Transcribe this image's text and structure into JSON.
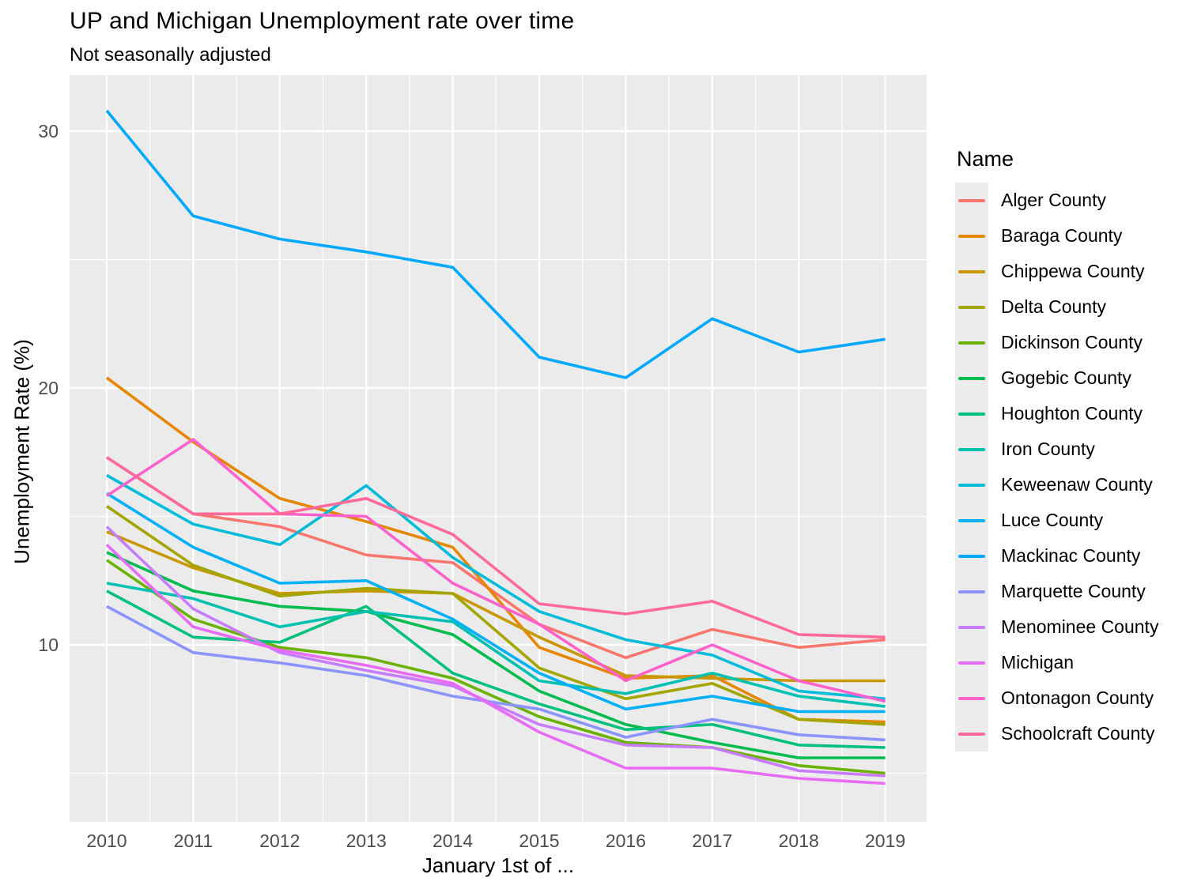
{
  "chart": {
    "title": "UP and Michigan Unemployment rate over time",
    "subtitle": "Not seasonally adjusted",
    "xlabel": "January 1st of ...",
    "ylabel": "Unemployment Rate (%)",
    "legend_title": "Name"
  },
  "chart_data": {
    "type": "line",
    "title": "UP and Michigan Unemployment rate over time",
    "subtitle": "Not seasonally adjusted",
    "xlabel": "January 1st of ...",
    "ylabel": "Unemployment Rate (%)",
    "x": [
      2010,
      2011,
      2012,
      2013,
      2014,
      2015,
      2016,
      2017,
      2018,
      2019
    ],
    "x_ticks": [
      "2010",
      "2011",
      "2012",
      "2013",
      "2014",
      "2015",
      "2016",
      "2017",
      "2018",
      "2019"
    ],
    "y_ticks": [
      10,
      20,
      30
    ],
    "y_minor_ticks": [
      5,
      15,
      25
    ],
    "ylim": [
      3.1,
      32.2
    ],
    "grid": true,
    "panel_background": "#ebebeb",
    "gridline_color": "#ffffff",
    "tick_label_color": "#4d4d4d",
    "legend_position": "right",
    "legend_title": "Name",
    "series": [
      {
        "name": "Alger County",
        "color": "#F8766D",
        "values": [
          17.3,
          15.1,
          14.6,
          13.5,
          13.2,
          10.8,
          9.5,
          10.6,
          9.9,
          10.2
        ]
      },
      {
        "name": "Baraga County",
        "color": "#E58700",
        "values": [
          20.4,
          17.9,
          15.7,
          14.8,
          13.8,
          9.9,
          8.7,
          8.8,
          7.1,
          7.0
        ]
      },
      {
        "name": "Chippewa County",
        "color": "#C99800",
        "values": [
          14.4,
          13.0,
          12.0,
          12.1,
          12.0,
          10.3,
          8.8,
          8.7,
          8.6,
          8.6
        ]
      },
      {
        "name": "Delta County",
        "color": "#A3A500",
        "values": [
          15.4,
          13.1,
          11.9,
          12.2,
          12.0,
          9.1,
          7.9,
          8.5,
          7.1,
          6.9
        ]
      },
      {
        "name": "Dickinson County",
        "color": "#6BB100",
        "values": [
          13.3,
          11.0,
          9.9,
          9.5,
          8.7,
          7.2,
          6.2,
          6.0,
          5.3,
          5.0
        ]
      },
      {
        "name": "Gogebic County",
        "color": "#00BB4E",
        "values": [
          13.6,
          12.1,
          11.5,
          11.3,
          10.4,
          8.2,
          6.9,
          6.2,
          5.6,
          5.6
        ]
      },
      {
        "name": "Houghton County",
        "color": "#00C07D",
        "values": [
          12.1,
          10.3,
          10.1,
          11.5,
          8.9,
          7.7,
          6.7,
          6.9,
          6.1,
          6.0
        ]
      },
      {
        "name": "Iron County",
        "color": "#00C0B2",
        "values": [
          12.4,
          11.8,
          10.7,
          11.3,
          10.9,
          8.6,
          8.1,
          8.9,
          8.0,
          7.6
        ]
      },
      {
        "name": "Keweenaw County",
        "color": "#00BCD8",
        "values": [
          16.6,
          14.7,
          13.9,
          16.2,
          13.4,
          11.3,
          10.2,
          9.6,
          8.2,
          7.9
        ]
      },
      {
        "name": "Luce County",
        "color": "#00B0F6",
        "values": [
          15.9,
          13.8,
          12.4,
          12.5,
          11.0,
          8.9,
          7.5,
          8.0,
          7.4,
          7.4
        ]
      },
      {
        "name": "Mackinac County",
        "color": "#00A9FF",
        "values": [
          30.8,
          26.7,
          25.8,
          25.3,
          24.7,
          21.2,
          20.4,
          22.7,
          21.4,
          21.9
        ]
      },
      {
        "name": "Marquette County",
        "color": "#8B93FF",
        "values": [
          11.5,
          9.7,
          9.3,
          8.8,
          8.0,
          7.5,
          6.4,
          7.1,
          6.5,
          6.3
        ]
      },
      {
        "name": "Menominee County",
        "color": "#C77CFF",
        "values": [
          14.6,
          11.4,
          9.7,
          9.0,
          8.4,
          6.9,
          6.1,
          6.0,
          5.1,
          4.9
        ]
      },
      {
        "name": "Michigan",
        "color": "#E76BF3",
        "values": [
          13.9,
          10.7,
          9.8,
          9.2,
          8.5,
          6.6,
          5.2,
          5.2,
          4.8,
          4.6
        ]
      },
      {
        "name": "Ontonagon County",
        "color": "#FF61CC",
        "values": [
          15.8,
          18.0,
          15.1,
          15.0,
          12.4,
          10.8,
          8.6,
          10.0,
          8.6,
          7.8
        ]
      },
      {
        "name": "Schoolcraft County",
        "color": "#FF6A98",
        "values": [
          17.3,
          15.1,
          15.1,
          15.7,
          14.3,
          11.6,
          11.2,
          11.7,
          10.4,
          10.3
        ]
      }
    ]
  }
}
